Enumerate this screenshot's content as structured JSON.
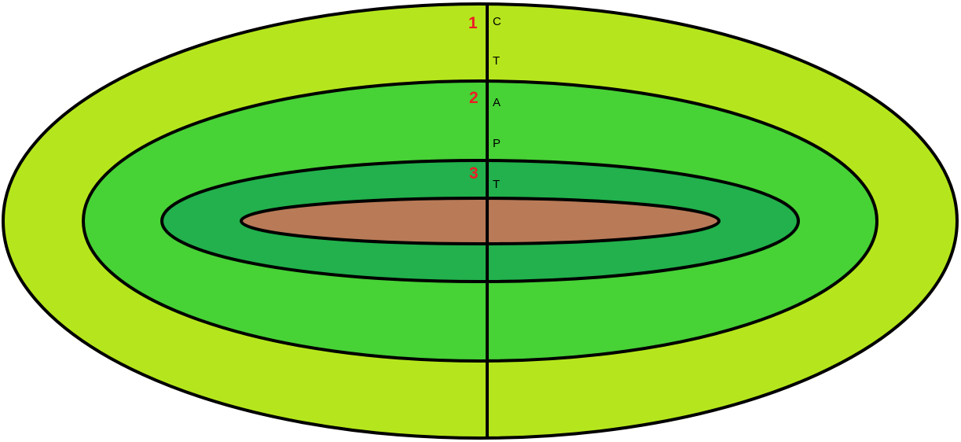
{
  "diagram": {
    "colors": {
      "outer_ring": "#b5e61d",
      "middle_ring": "#47d236",
      "inner_ring": "#22b14c",
      "core": "#b97a57",
      "outline": "#000000",
      "number_label": "#ed1c24",
      "letter_label": "#000000"
    },
    "layers": [
      {
        "number": "1",
        "letters": [
          "C",
          "T"
        ]
      },
      {
        "number": "2",
        "letters": [
          "A",
          "P"
        ]
      },
      {
        "number": "3",
        "letters": [
          "T"
        ]
      }
    ]
  }
}
